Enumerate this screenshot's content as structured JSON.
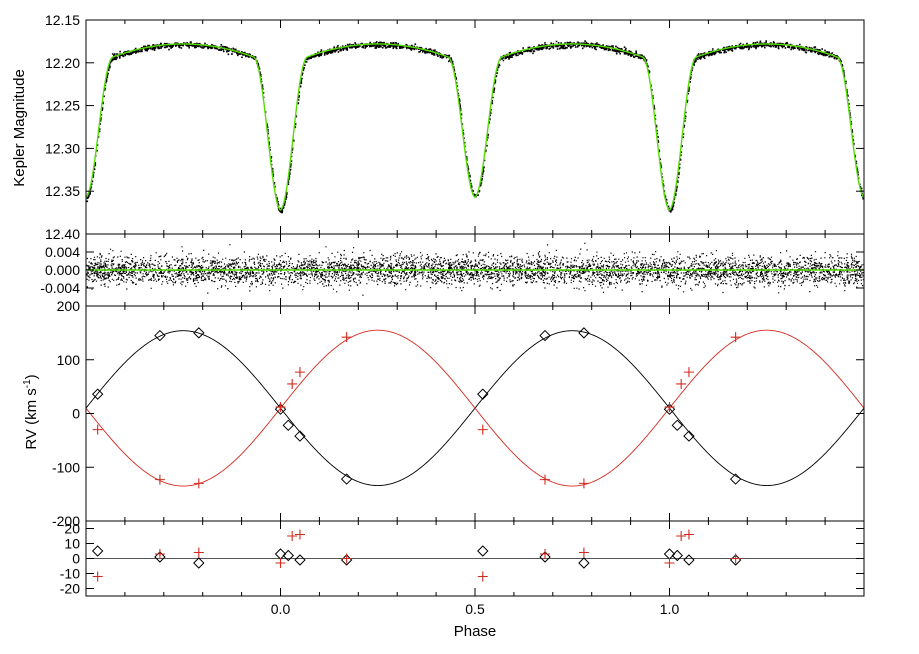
{
  "figure": {
    "xlabel": "Phase",
    "colors": {
      "data": "#000000",
      "model": "#55dd00",
      "primary": "#000000",
      "secondary": "#d42a1e",
      "residual_zero": "#555555"
    }
  },
  "chart_data": [
    {
      "type": "line",
      "panel": "light-curve",
      "title": "",
      "xlabel": "",
      "ylabel": "Kepler Magnitude",
      "xlim": [
        -0.5,
        1.5
      ],
      "ylim": [
        12.4,
        12.15
      ],
      "y_inverted": true,
      "yticks": [
        "12.15",
        "12.20",
        "12.25",
        "12.30",
        "12.35",
        "12.40"
      ],
      "yticks_values": [
        12.15,
        12.2,
        12.25,
        12.3,
        12.35,
        12.4
      ],
      "model": {
        "out_of_eclipse_max": 12.178,
        "out_of_eclipse_edge": 12.207,
        "primary_eclipse": {
          "phase": 0.0,
          "depth_mag": 12.372,
          "half_width": 0.07
        },
        "secondary_eclipse": {
          "phase": 0.5,
          "depth_mag": 12.357,
          "half_width": 0.07
        }
      },
      "series": [
        {
          "name": "",
          "style": "points"
        },
        {
          "name": "",
          "style": "line"
        }
      ]
    },
    {
      "type": "scatter",
      "panel": "light-curve-residuals",
      "title": "",
      "xlabel": "",
      "ylabel": "",
      "xlim": [
        -0.5,
        1.5
      ],
      "ylim": [
        -0.008,
        0.008
      ],
      "yticks": [
        "0.004",
        "0.000",
        "-0.004"
      ],
      "yticks_values": [
        0.004,
        0.0,
        -0.004
      ],
      "scatter_sigma": 0.0016,
      "zero_line": 0.0
    },
    {
      "type": "line",
      "panel": "radial-velocity",
      "title": "",
      "xlabel": "",
      "ylabel": "RV (km s",
      "ylabel_sup": "-1",
      "ylabel_end": ")",
      "xlim": [
        -0.5,
        1.5
      ],
      "ylim": [
        -200,
        200
      ],
      "yticks": [
        "200",
        "100",
        "0",
        "-100",
        "-200"
      ],
      "yticks_values": [
        200,
        100,
        0,
        -100,
        -200
      ],
      "model": {
        "systemic_velocity": 10,
        "primary_semi_amplitude": 144,
        "secondary_semi_amplitude": 145,
        "primary_max_phase": 0.75,
        "secondary_max_phase": 0.25
      },
      "series": [
        {
          "name": "",
          "marker": "diamond",
          "color": "#000000",
          "x": [
            -0.47,
            -0.31,
            -0.21,
            0.0,
            0.02,
            0.05,
            0.17,
            0.52,
            0.68,
            0.78,
            1.0,
            1.02,
            1.05,
            1.17
          ],
          "y": [
            36,
            145,
            150,
            8,
            -22,
            -42,
            -122,
            36,
            145,
            150,
            8,
            -22,
            -42,
            -122
          ]
        },
        {
          "name": "",
          "marker": "plus",
          "color": "#d42a1e",
          "x": [
            -0.47,
            -0.31,
            -0.21,
            0.0,
            0.03,
            0.05,
            0.17,
            0.52,
            0.68,
            0.78,
            1.0,
            1.03,
            1.05,
            1.17
          ],
          "y": [
            -30,
            -123,
            -130,
            12,
            55,
            77,
            142,
            -30,
            -123,
            -130,
            12,
            55,
            77,
            142
          ]
        }
      ]
    },
    {
      "type": "scatter",
      "panel": "rv-residuals",
      "title": "",
      "xlabel": "Phase",
      "ylabel": "",
      "xlim": [
        -0.5,
        1.5
      ],
      "ylim": [
        -25,
        25
      ],
      "yticks": [
        "20",
        "10",
        "0",
        "-10",
        "-20"
      ],
      "yticks_values": [
        20,
        10,
        0,
        -10,
        -20
      ],
      "xticks": [
        "0.0",
        "0.5",
        "1.0"
      ],
      "xticks_values": [
        0.0,
        0.5,
        1.0
      ],
      "zero_line": 0,
      "series": [
        {
          "name": "",
          "marker": "diamond",
          "color": "#000000",
          "x": [
            -0.47,
            -0.31,
            -0.21,
            0.0,
            0.02,
            0.05,
            0.17,
            0.52,
            0.68,
            0.78,
            1.0,
            1.02,
            1.05,
            1.17
          ],
          "y": [
            5,
            1,
            -3,
            3,
            2,
            -1,
            -1,
            5,
            1,
            -3,
            3,
            2,
            -1,
            -1
          ]
        },
        {
          "name": "",
          "marker": "plus",
          "color": "#d42a1e",
          "x": [
            -0.47,
            -0.31,
            -0.21,
            0.0,
            0.03,
            0.05,
            0.17,
            0.52,
            0.68,
            0.78,
            1.0,
            1.03,
            1.05,
            1.17
          ],
          "y": [
            -12,
            3,
            4,
            -3,
            15,
            16,
            0,
            -12,
            3,
            4,
            -3,
            15,
            16,
            0
          ]
        }
      ]
    }
  ]
}
